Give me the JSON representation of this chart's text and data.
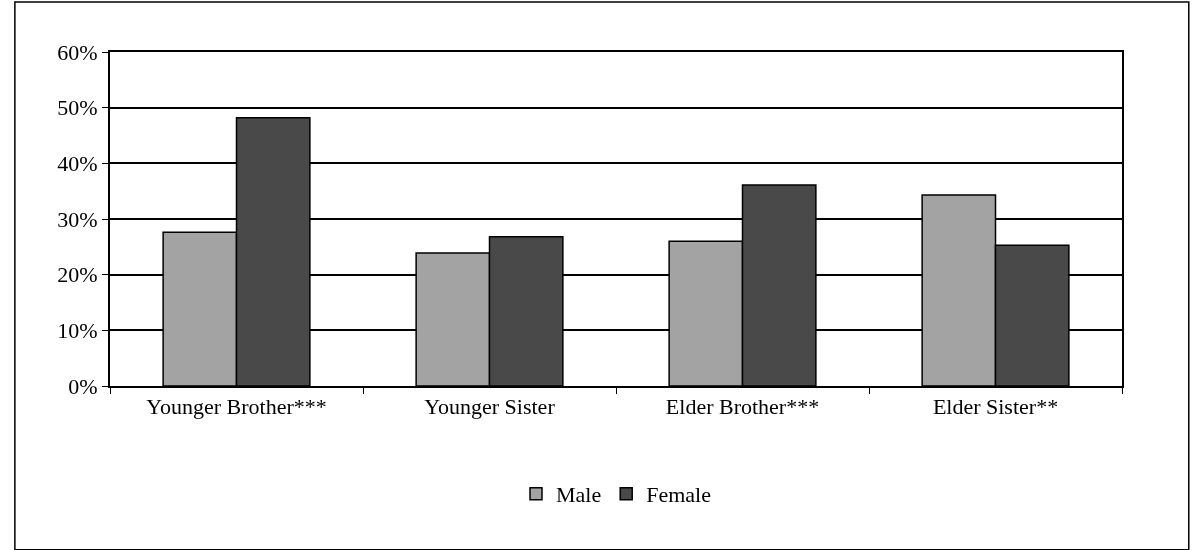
{
  "chart_data": {
    "type": "bar",
    "categories": [
      "Younger Brother***",
      "Younger Sister",
      "Elder Brother***",
      "Elder Sister**"
    ],
    "series": [
      {
        "name": "Male",
        "color": "#a3a3a3",
        "values": [
          27.6,
          23.9,
          26.0,
          34.3
        ]
      },
      {
        "name": "Female",
        "color": "#494949",
        "values": [
          48.2,
          26.8,
          36.1,
          25.3
        ]
      }
    ],
    "ylim": [
      0,
      60
    ],
    "yticks": [
      {
        "value": 0,
        "label": "0%"
      },
      {
        "value": 10,
        "label": "10%"
      },
      {
        "value": 20,
        "label": "20%"
      },
      {
        "value": 30,
        "label": "30%"
      },
      {
        "value": 40,
        "label": "40%"
      },
      {
        "value": 50,
        "label": "50%"
      },
      {
        "value": 60,
        "label": "60%"
      }
    ],
    "grid": "y",
    "legend": "bottom"
  }
}
